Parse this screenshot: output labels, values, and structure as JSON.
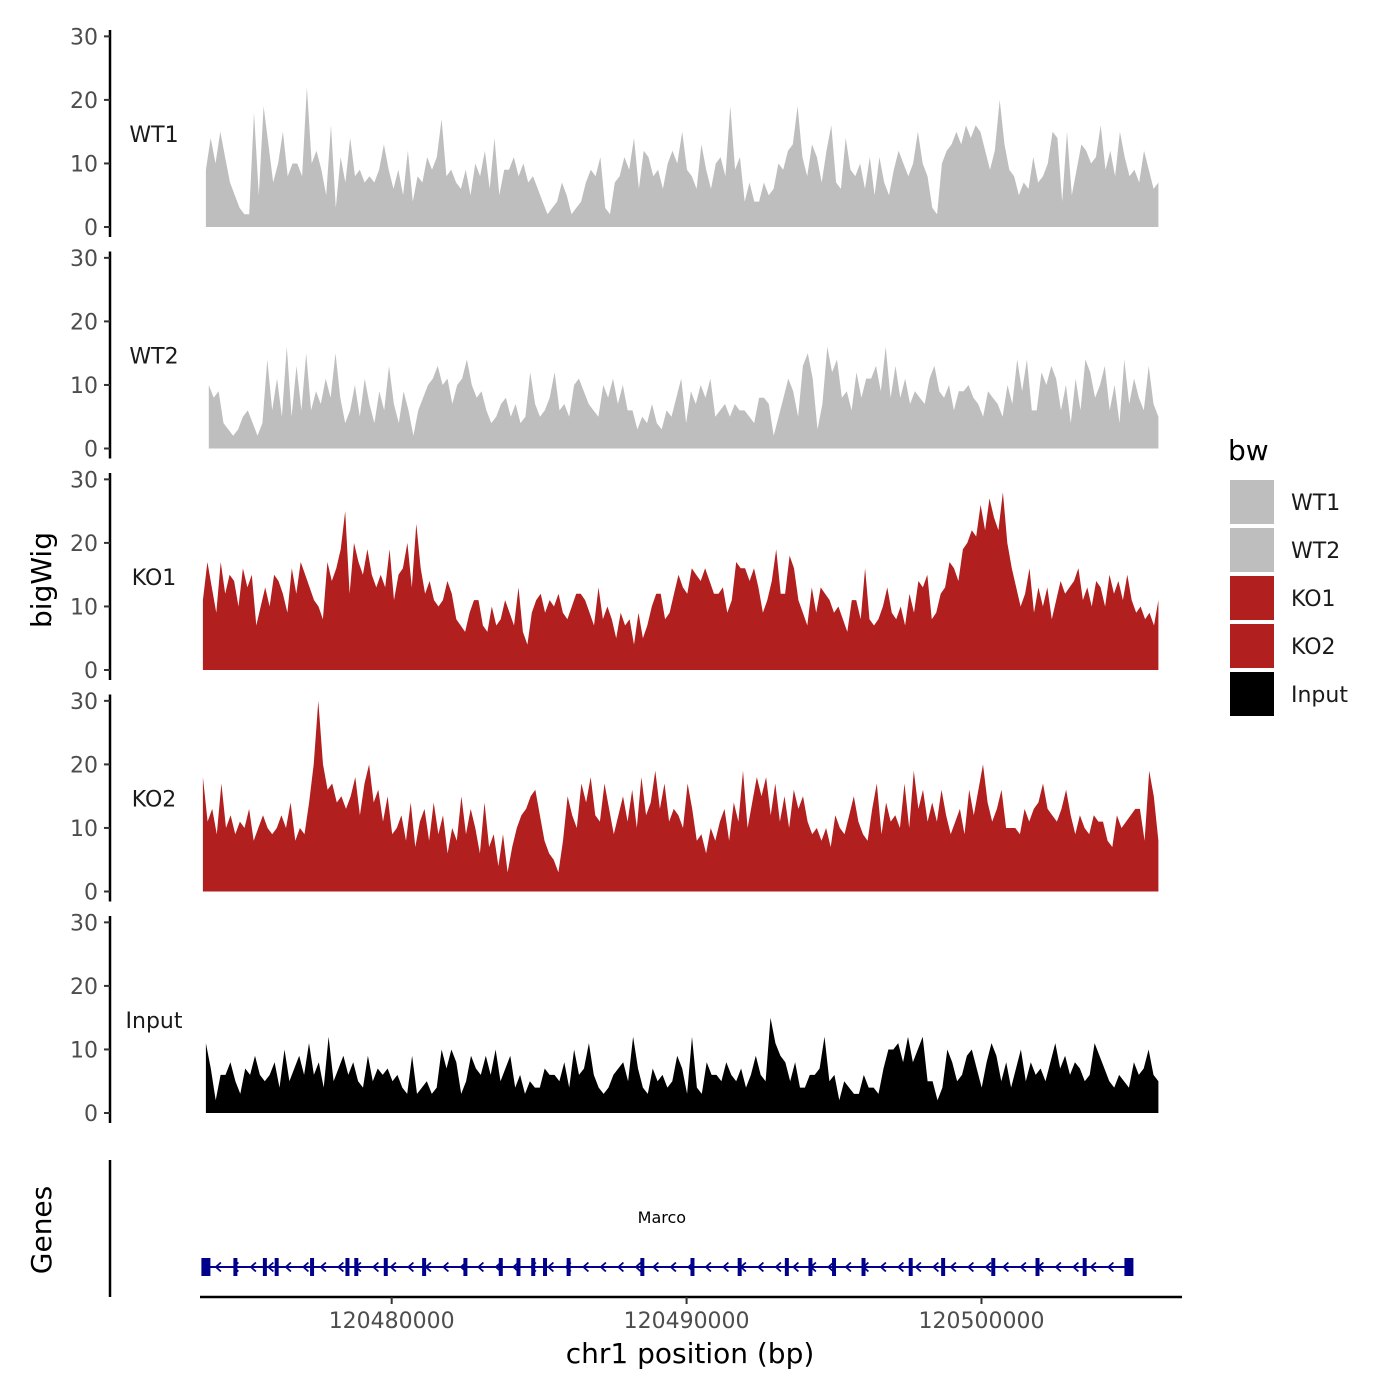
{
  "chart_data": {
    "type": "area",
    "xlabel": "chr1 position (bp)",
    "ylabel": "bigWig",
    "genes_axis_label": "Genes",
    "xlim": [
      120473500,
      120506800
    ],
    "ylim": [
      0,
      31
    ],
    "y_ticks": [
      0,
      10,
      20,
      30
    ],
    "y_tick_labels": [
      "0",
      "10",
      "20",
      "30"
    ],
    "x_ticks": [
      120480000,
      120490000,
      120500000
    ],
    "x_tick_labels": [
      "120480000",
      "120490000",
      "120500000"
    ],
    "legend": {
      "title": "bw",
      "placement": "right",
      "entries": [
        {
          "label": "WT1",
          "color": "#bebebe"
        },
        {
          "label": "WT2",
          "color": "#bebebe"
        },
        {
          "label": "KO1",
          "color": "#b21f1f"
        },
        {
          "label": "KO2",
          "color": "#b21f1f"
        },
        {
          "label": "Input",
          "color": "#000000"
        }
      ]
    },
    "series": [
      {
        "name": "WT1",
        "color": "#bebebe",
        "x_start": 120473700,
        "x_end": 120506000,
        "values": [
          9,
          14,
          10,
          15,
          11,
          7,
          5,
          3,
          2,
          2,
          18,
          5,
          19,
          13,
          7,
          10,
          15,
          8,
          10,
          10,
          8,
          22,
          10,
          12,
          9,
          5,
          16,
          3,
          11,
          7,
          14,
          8,
          9,
          7,
          8,
          7,
          9,
          13,
          9,
          6,
          9,
          5,
          12,
          4,
          8,
          7,
          11,
          9,
          11,
          17,
          8,
          9,
          7,
          6,
          9,
          5,
          10,
          8,
          12,
          6,
          14,
          5,
          9,
          9,
          11,
          8,
          10,
          7,
          8,
          6,
          4,
          2,
          3,
          4,
          7,
          5,
          2,
          3,
          4,
          7,
          9,
          8,
          11,
          3,
          2,
          7,
          8,
          11,
          9,
          14,
          6,
          12,
          11,
          8,
          9,
          6,
          10,
          12,
          10,
          15,
          9,
          8,
          6,
          13,
          9,
          6,
          10,
          11,
          8,
          19,
          9,
          11,
          4,
          7,
          4,
          4,
          7,
          5,
          6,
          10,
          9,
          12,
          13,
          19,
          11,
          8,
          13,
          11,
          7,
          12,
          16,
          7,
          6,
          14,
          9,
          8,
          10,
          6,
          11,
          5,
          11,
          7,
          5,
          9,
          12,
          10,
          8,
          10,
          15,
          10,
          8,
          3,
          2,
          10,
          12,
          13,
          15,
          13,
          16,
          14,
          16,
          15,
          12,
          9,
          12,
          20,
          13,
          9,
          8,
          5,
          7,
          6,
          11,
          7,
          8,
          10,
          15,
          14,
          4,
          15,
          5,
          9,
          13,
          12,
          10,
          11,
          16,
          9,
          12,
          8,
          15,
          11,
          8,
          9,
          7,
          12,
          9,
          6,
          7
        ]
      },
      {
        "name": "WT2",
        "color": "#bebebe",
        "x_start": 120473800,
        "x_end": 120506000,
        "values": [
          10,
          8,
          9,
          4,
          3,
          2,
          3,
          5,
          6,
          4,
          2,
          4,
          14,
          6,
          11,
          5,
          16,
          5,
          13,
          6,
          15,
          6,
          9,
          7,
          11,
          8,
          15,
          8,
          4,
          6,
          10,
          5,
          11,
          7,
          4,
          9,
          6,
          13,
          7,
          4,
          9,
          6,
          2,
          6,
          8,
          10,
          11,
          13,
          10,
          11,
          7,
          10,
          11,
          14,
          10,
          8,
          9,
          6,
          4,
          5,
          7,
          8,
          5,
          7,
          4,
          5,
          12,
          7,
          5,
          6,
          8,
          12,
          6,
          7,
          5,
          10,
          11,
          9,
          7,
          6,
          5,
          10,
          8,
          11,
          7,
          10,
          6,
          6,
          3,
          5,
          4,
          7,
          4,
          3,
          6,
          5,
          8,
          11,
          4,
          9,
          7,
          10,
          8,
          11,
          5,
          6,
          7,
          5,
          7,
          6,
          6,
          5,
          4,
          8,
          8,
          7,
          2,
          5,
          8,
          11,
          9,
          5,
          13,
          15,
          11,
          3,
          7,
          16,
          12,
          14,
          8,
          9,
          6,
          12,
          8,
          11,
          11,
          13,
          9,
          16,
          8,
          13,
          8,
          11,
          7,
          9,
          8,
          7,
          11,
          13,
          9,
          8,
          10,
          6,
          9,
          9,
          10,
          8,
          7,
          5,
          9,
          8,
          7,
          5,
          10,
          7,
          14,
          9,
          14,
          6,
          6,
          12,
          10,
          13,
          11,
          6,
          10,
          4,
          11,
          6,
          14,
          12,
          8,
          10,
          13,
          6,
          10,
          4,
          14,
          7,
          11,
          8,
          6,
          13,
          7,
          5
        ]
      },
      {
        "name": "KO1",
        "color": "#b21f1f",
        "x_start": 120473600,
        "x_end": 120506000,
        "values": [
          11,
          17,
          13,
          9,
          17,
          12,
          15,
          14,
          10,
          16,
          13,
          15,
          7,
          10,
          13,
          10,
          15,
          14,
          12,
          9,
          16,
          12,
          17,
          15,
          13,
          11,
          10,
          8,
          17,
          14,
          16,
          19,
          25,
          12,
          20,
          17,
          15,
          19,
          15,
          13,
          15,
          13,
          19,
          11,
          15,
          16,
          20,
          13,
          23,
          16,
          12,
          14,
          11,
          10,
          11,
          14,
          12,
          8,
          7,
          6,
          9,
          11,
          11,
          7,
          6,
          10,
          7,
          8,
          11,
          9,
          7,
          13,
          6,
          4,
          9,
          11,
          12,
          9,
          11,
          10,
          12,
          9,
          8,
          10,
          12,
          12,
          11,
          9,
          7,
          13,
          8,
          10,
          8,
          5,
          9,
          7,
          8,
          4,
          9,
          5,
          7,
          10,
          12,
          12,
          8,
          9,
          12,
          15,
          13,
          12,
          16,
          15,
          14,
          16,
          14,
          12,
          12,
          13,
          9,
          11,
          17,
          16,
          16,
          14,
          16,
          13,
          9,
          11,
          14,
          19,
          12,
          12,
          18,
          16,
          11,
          9,
          7,
          13,
          9,
          13,
          12,
          11,
          9,
          10,
          8,
          6,
          11,
          11,
          8,
          16,
          8,
          7,
          8,
          10,
          13,
          9,
          8,
          10,
          7,
          12,
          9,
          14,
          13,
          15,
          8,
          9,
          12,
          13,
          17,
          16,
          14,
          19,
          20,
          22,
          21,
          26,
          22,
          27,
          24,
          22,
          28,
          20,
          16,
          13,
          10,
          12,
          16,
          9,
          13,
          10,
          13,
          8,
          11,
          14,
          12,
          13,
          14,
          16,
          11,
          13,
          10,
          14,
          13,
          10,
          15,
          12,
          14,
          11,
          15,
          11,
          9,
          10,
          8,
          9,
          7,
          11
        ]
      },
      {
        "name": "KO2",
        "color": "#b21f1f",
        "x_start": 120473600,
        "x_end": 120506000,
        "values": [
          18,
          11,
          13,
          9,
          17,
          10,
          12,
          9,
          11,
          10,
          13,
          8,
          10,
          12,
          10,
          9,
          10,
          12,
          10,
          14,
          8,
          10,
          9,
          14,
          20,
          30,
          20,
          16,
          17,
          14,
          15,
          13,
          15,
          18,
          12,
          17,
          20,
          14,
          16,
          11,
          15,
          9,
          10,
          12,
          8,
          14,
          7,
          11,
          13,
          8,
          14,
          9,
          12,
          6,
          10,
          8,
          15,
          9,
          13,
          10,
          6,
          14,
          7,
          9,
          4,
          9,
          3,
          7,
          10,
          12,
          13,
          15,
          16,
          12,
          8,
          6,
          5,
          3,
          8,
          15,
          12,
          10,
          17,
          14,
          18,
          12,
          11,
          17,
          13,
          9,
          12,
          15,
          11,
          16,
          10,
          18,
          12,
          14,
          19,
          13,
          17,
          11,
          13,
          12,
          10,
          17,
          13,
          8,
          9,
          6,
          10,
          8,
          11,
          13,
          8,
          14,
          11,
          19,
          10,
          14,
          18,
          15,
          18,
          12,
          17,
          11,
          15,
          10,
          16,
          13,
          15,
          11,
          9,
          10,
          8,
          10,
          7,
          12,
          10,
          9,
          12,
          15,
          11,
          9,
          8,
          13,
          17,
          9,
          14,
          11,
          12,
          10,
          17,
          10,
          19,
          13,
          16,
          11,
          14,
          11,
          16,
          12,
          9,
          11,
          13,
          9,
          16,
          12,
          16,
          20,
          14,
          11,
          13,
          16,
          10,
          10,
          10,
          9,
          13,
          11,
          13,
          14,
          17,
          13,
          12,
          11,
          13,
          16,
          12,
          9,
          12,
          10,
          9,
          12,
          11,
          11,
          8,
          7,
          12,
          10,
          11,
          12,
          13,
          13,
          8,
          19,
          15,
          8
        ]
      },
      {
        "name": "Input",
        "color": "#000000",
        "x_start": 120473700,
        "x_end": 120506000,
        "values": [
          11,
          7,
          2,
          6,
          6,
          8,
          5,
          3,
          7,
          6,
          9,
          6,
          5,
          6,
          8,
          4,
          10,
          5,
          7,
          9,
          6,
          11,
          6,
          8,
          4,
          12,
          5,
          7,
          9,
          6,
          8,
          5,
          4,
          9,
          5,
          7,
          6,
          7,
          5,
          6,
          4,
          3,
          9,
          3,
          4,
          5,
          3,
          4,
          10,
          7,
          10,
          8,
          3,
          5,
          9,
          7,
          6,
          9,
          6,
          10,
          5,
          7,
          9,
          4,
          6,
          3,
          5,
          4,
          4,
          7,
          6,
          6,
          5,
          8,
          4,
          10,
          6,
          7,
          11,
          6,
          4,
          3,
          4,
          6,
          7,
          8,
          5,
          12,
          7,
          4,
          3,
          7,
          5,
          6,
          4,
          5,
          9,
          7,
          3,
          12,
          4,
          3,
          8,
          6,
          6,
          5,
          8,
          6,
          5,
          7,
          4,
          6,
          9,
          6,
          5,
          15,
          11,
          9,
          8,
          5,
          8,
          4,
          4,
          6,
          6,
          7,
          12,
          5,
          6,
          2,
          5,
          4,
          3,
          3,
          6,
          4,
          4,
          3,
          7,
          10,
          10,
          11,
          8,
          12,
          8,
          10,
          12,
          5,
          5,
          2,
          4,
          10,
          8,
          5,
          6,
          9,
          10,
          7,
          4,
          8,
          11,
          9,
          5,
          8,
          4,
          7,
          10,
          5,
          8,
          6,
          7,
          5,
          8,
          11,
          7,
          9,
          6,
          8,
          7,
          5,
          6,
          11,
          9,
          7,
          5,
          4,
          6,
          5,
          4,
          8,
          6,
          7,
          10,
          6,
          5
        ]
      }
    ],
    "gene_track": {
      "gene_name": "Marco",
      "strand": "-",
      "start": 120473700,
      "end": 120505100,
      "color": "#00008b",
      "exons": [
        120473700,
        120474700,
        120475700,
        120476100,
        120477300,
        120478500,
        120478800,
        120479800,
        120481100,
        120482500,
        120483700,
        120484300,
        120484800,
        120485200,
        120486000,
        120488500,
        120490200,
        120491800,
        120493400,
        120494200,
        120495000,
        120496000,
        120497600,
        120498700,
        120500400,
        120501900,
        120503500,
        120505000
      ]
    }
  }
}
